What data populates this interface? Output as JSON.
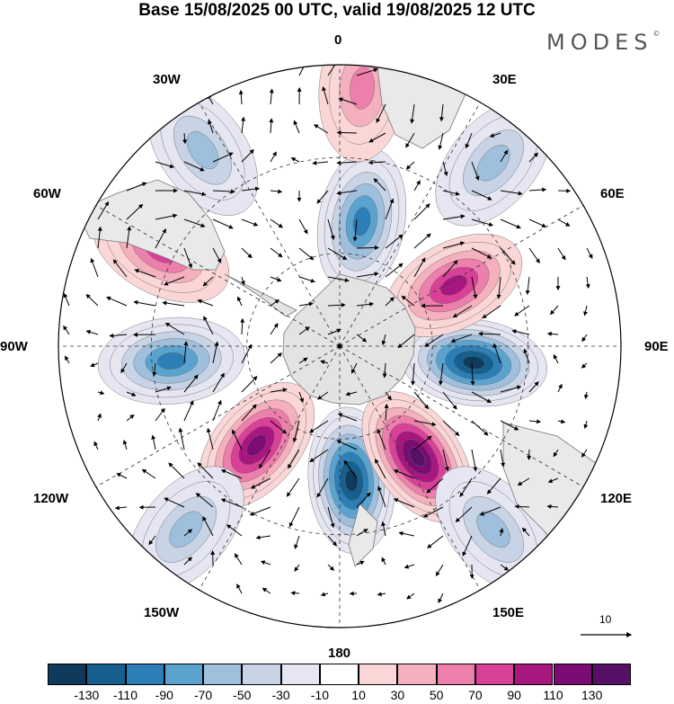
{
  "title": "Base 15/08/2025 00 UTC, valid 19/08/2025 12 UTC",
  "brand": "MODES",
  "brand_mark": "©",
  "longitude_labels": {
    "top": "0",
    "top_right": "30E",
    "upper_right": "60E",
    "right": "90E",
    "lower_right": "120E",
    "bottom_right": "150E",
    "bottom": "180",
    "bottom_left": "150W",
    "lower_left": "120W",
    "left": "90W",
    "upper_left": "60W",
    "top_left": "30W"
  },
  "vector_scale_label": "10",
  "colorbar": {
    "colors": [
      "#0f3a5c",
      "#15608f",
      "#2c7fb6",
      "#5ba3cf",
      "#9fc0dc",
      "#c8d3e6",
      "#e6e6f2",
      "#ffffff",
      "#fbd6d6",
      "#f5b0bd",
      "#ec7fab",
      "#d94098",
      "#a8167f",
      "#7a0c74",
      "#561167"
    ],
    "tick_labels": [
      "-130",
      "-110",
      "-90",
      "-70",
      "-50",
      "-30",
      "-10",
      "10",
      "30",
      "50",
      "70",
      "90",
      "110",
      "130"
    ]
  },
  "anomaly_centers": [
    {
      "lon": 175,
      "value": -130,
      "color": "#0f3a5c"
    },
    {
      "lon": 97,
      "value": -130,
      "color": "#0f3a5c"
    },
    {
      "lon": 145,
      "value": 130,
      "color": "#561167"
    },
    {
      "lon": -140,
      "value": 110,
      "color": "#7a0c74"
    },
    {
      "lon": 62,
      "value": 110,
      "color": "#a8167f"
    },
    {
      "lon": -95,
      "value": -70,
      "color": "#2c7fb6"
    },
    {
      "lon": 10,
      "value": -90,
      "color": "#2c7fb6"
    },
    {
      "lon": -62,
      "value": 90,
      "color": "#d94098"
    },
    {
      "lon": 5,
      "value": 70,
      "color": "#ec7fab"
    },
    {
      "lon": -35,
      "value": -50,
      "color": "#9fc0dc"
    },
    {
      "lon": 40,
      "value": -50,
      "color": "#9fc0dc"
    },
    {
      "lon": -140,
      "value": -50,
      "color": "#9fc0dc"
    },
    {
      "lon": 140,
      "value": -50,
      "color": "#9fc0dc"
    }
  ]
}
